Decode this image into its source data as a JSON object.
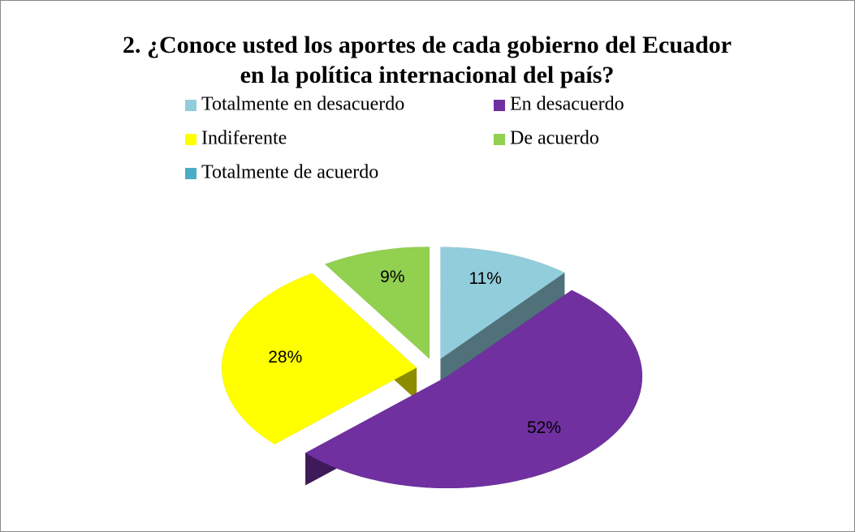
{
  "chart_data": {
    "type": "pie",
    "title": [
      "2. ¿Conoce usted los aportes de cada gobierno del Ecuador",
      "en la política internacional del país?"
    ],
    "categories": [
      "Totalmente en desacuerdo",
      "En desacuerdo",
      "Indiferente",
      "De acuerdo",
      "Totalmente de acuerdo"
    ],
    "values": [
      11,
      52,
      28,
      9,
      0
    ],
    "value_labels": [
      "11%",
      "52%",
      "28%",
      "9%",
      null
    ],
    "colors": [
      "#92cddc",
      "#7030a0",
      "#ffff00",
      "#92d050",
      "#4bacc6"
    ],
    "legend": "top"
  }
}
